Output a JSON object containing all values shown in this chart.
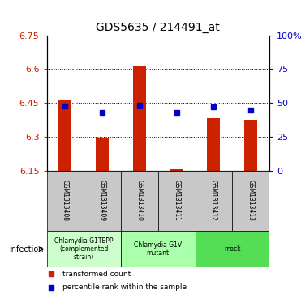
{
  "title": "GDS5635 / 214491_at",
  "samples": [
    "GSM1313408",
    "GSM1313409",
    "GSM1313410",
    "GSM1313411",
    "GSM1313412",
    "GSM1313413"
  ],
  "bar_values": [
    6.463,
    6.292,
    6.615,
    6.156,
    6.383,
    6.375
  ],
  "blue_values": [
    6.435,
    6.408,
    6.44,
    6.408,
    6.432,
    6.418
  ],
  "bar_bottom": 6.15,
  "ylim_left": [
    6.15,
    6.75
  ],
  "yticks_left": [
    6.15,
    6.3,
    6.45,
    6.6,
    6.75
  ],
  "ytick_labels_left": [
    "6.15",
    "6.3",
    "6.45",
    "6.6",
    "6.75"
  ],
  "ylim_right": [
    0,
    100
  ],
  "yticks_right": [
    0,
    25,
    50,
    75,
    100
  ],
  "ytick_labels_right": [
    "0",
    "25",
    "50",
    "75",
    "100%"
  ],
  "bar_color": "#cc2200",
  "blue_color": "#0000cc",
  "groups": [
    {
      "label": "Chlamydia G1TEPP\n(complemented\nstrain)",
      "start": 0,
      "end": 2,
      "color": "#ccffcc"
    },
    {
      "label": "Chlamydia G1V\nmutant",
      "start": 2,
      "end": 4,
      "color": "#aaffaa"
    },
    {
      "label": "mock",
      "start": 4,
      "end": 6,
      "color": "#55dd55"
    }
  ],
  "factor_label": "infection",
  "legend_items": [
    {
      "label": "transformed count",
      "color": "#cc2200",
      "marker": "s"
    },
    {
      "label": "percentile rank within the sample",
      "color": "#0000cc",
      "marker": "s"
    }
  ],
  "background_color": "#ffffff",
  "plot_bg": "#ffffff",
  "bar_width": 0.35,
  "sample_bg_color": "#c8c8c8"
}
